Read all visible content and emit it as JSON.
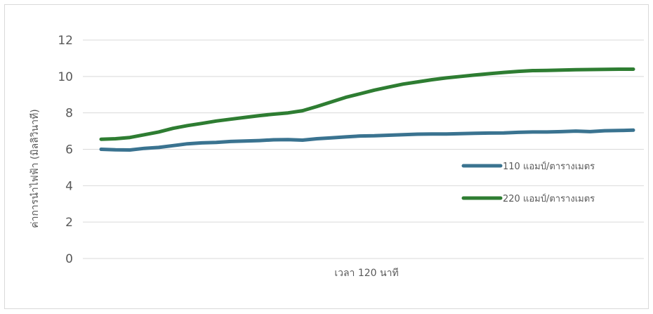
{
  "chart_data": {
    "type": "line",
    "xlabel": "เวลา 120 นาที",
    "ylabel": "ค่าการนำไฟฟ้า (มิลลิวินาที)",
    "ylim": [
      0,
      12
    ],
    "yticks": [
      "0",
      "2",
      "4",
      "6",
      "8",
      "10",
      "12"
    ],
    "grid": true,
    "legend_position": "right",
    "x": [
      0,
      1,
      2,
      3,
      4,
      5,
      6,
      7,
      8,
      9,
      10,
      11,
      12,
      13,
      14,
      15,
      16,
      17,
      18,
      19,
      20,
      21,
      22,
      23,
      24,
      25,
      26,
      27,
      28,
      29,
      30,
      31,
      32,
      33,
      34,
      35,
      36,
      37
    ],
    "series": [
      {
        "name": "110 แอมป์/ตารางเมตร",
        "color": "#3a7390",
        "values": [
          6.0,
          5.97,
          5.96,
          6.05,
          6.1,
          6.2,
          6.3,
          6.35,
          6.38,
          6.43,
          6.45,
          6.48,
          6.52,
          6.53,
          6.5,
          6.58,
          6.63,
          6.68,
          6.73,
          6.74,
          6.77,
          6.8,
          6.83,
          6.84,
          6.84,
          6.86,
          6.88,
          6.89,
          6.9,
          6.93,
          6.95,
          6.95,
          6.97,
          7.0,
          6.97,
          7.02,
          7.03,
          7.05
        ]
      },
      {
        "name": "220 แอมป์/ตารางเมตร",
        "color": "#2e7d32",
        "values": [
          6.55,
          6.58,
          6.65,
          6.8,
          6.95,
          7.15,
          7.3,
          7.42,
          7.55,
          7.65,
          7.75,
          7.85,
          7.93,
          8.0,
          8.12,
          8.35,
          8.6,
          8.85,
          9.05,
          9.25,
          9.42,
          9.58,
          9.7,
          9.82,
          9.92,
          10.0,
          10.08,
          10.15,
          10.22,
          10.28,
          10.32,
          10.33,
          10.35,
          10.37,
          10.38,
          10.39,
          10.4,
          10.4
        ]
      }
    ]
  }
}
